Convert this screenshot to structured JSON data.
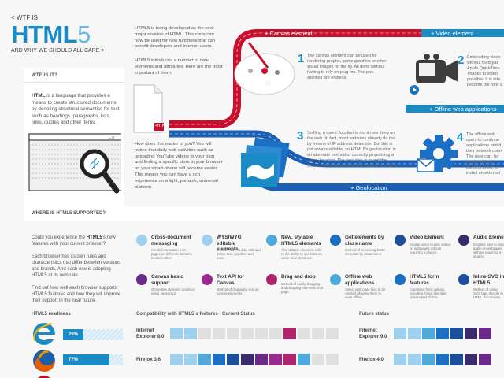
{
  "header": {
    "back_link": "< WTF IS",
    "title_html": "HTML",
    "title_five": "5",
    "subtitle": "AND WHY WE SHOULD ALL CARE >"
  },
  "intro": {
    "p1": "HTML5 is being developed as the next major revision of HTML. This code can now be used for new functions that can benefit developers and Internet users.",
    "p2": "HTML5 introduces a number of new elements and attributes. Here are the most important of them:",
    "p3": "How does this matter to you? You will notice that daily web activities such as uploading YouTube videos to your blog and finding a specific store in your browser on your smart-phone will become easier. This means you can have a rich experience on a light, portable, universal platform.",
    "html_tag": "<HTML>"
  },
  "wtf_panel": {
    "title": "WTF IS IT?",
    "text_bold": "HTML",
    "text": " is a language that provides a means to create structured documents by denoting structural semantics for text such as headings, paragraphs, lists, links, quotes and other items."
  },
  "roads": {
    "canvas_label": "+ Canvas element",
    "video_label": "+ Video element",
    "offline_label": "+ Offline web applications",
    "geo_label": "+ Geolocation"
  },
  "features": [
    {
      "num": "1",
      "text": "The canvas element can be used for rendering graphs, game graphics or other visual images on the fly. All done without having to rely on plug-ins. The pos-sibilities are endless."
    },
    {
      "num": "2",
      "text": "Embedding video without third-par Apple QuickTime Thanks to video possible. It is inte become the new s"
    },
    {
      "num": "3",
      "text": "Sniffing a users' location is not a new thing on the web. In fact, most websites already do this by means of IP address detection. But this is not always reliable, so HTML5's geolocation is an alternate method of correctly pinpointing a users' location. The new idea is to get the location information from WiFi towers and GPS."
    },
    {
      "num": "4",
      "text": "The offline web users to continue applications and d their network conn The user can, for locally without t connect to the In install an external"
    }
  ],
  "support": {
    "title": "WHERE IS HTML5 SUPPORTED?",
    "p1_pre": "Could you experience the ",
    "p1_bold": "HTML5",
    "p1_post": "'s new features with your current browser?",
    "p2": "Each browser has its own rules and characteristics that differ between versions and brands. And each one is adopting HTML5 at its own rate.",
    "p3": "Find out how well each browser supports HTML5 features and how they will improve their support in the near future."
  },
  "legend": [
    {
      "title": "Cross-document messaging",
      "desc": "Sends information from pages on different domains to each other.",
      "color": "#9fd1ef"
    },
    {
      "title": "WYSIWYG editable elements",
      "desc": "Enables user to add, edit and delete text, graphics and more.",
      "color": "#9fd1ef"
    },
    {
      "title": "New, stylable HTML5 elements",
      "desc": "The stylable elements refer to the ability to use CSS on some new elements.",
      "color": "#4ea9dd"
    },
    {
      "title": "Get elements by class name",
      "desc": "Method of accessing DOM elements by class name.",
      "color": "#1b6fc4"
    },
    {
      "title": "Video Element",
      "desc": "Enable users to play videos on webpages without requiring a plug-in.",
      "color": "#1b4f9c"
    },
    {
      "title": "Audio Element",
      "desc": "Enables user to play audio on webpages without requiring a plug-in.",
      "color": "#3a2c6c"
    },
    {
      "title": "Canvas basic support",
      "desc": "Generates dynamic graphics using Javascript.",
      "color": "#6a2a8a"
    },
    {
      "title": "Text API for Canvas",
      "desc": "Method of displaying text on canvas elements.",
      "color": "#9a2a8e"
    },
    {
      "title": "Drag and drop",
      "desc": "Method of easily dragging and dropping elements on a page.",
      "color": "#b0246e"
    },
    {
      "title": "Offline web applications",
      "desc": "Select web page files to be cached allowing them to work offline.",
      "color": "#4ea9dd"
    },
    {
      "title": "HTML5 form features",
      "desc": "Expanded form options, including things like date pickers and sliders.",
      "color": "#1b6fc4"
    },
    {
      "title": "Inline SVG in HTML5",
      "desc": "Method of using SVG tags directly in HTML documents.",
      "color": "#1b4f9c"
    }
  ],
  "readiness": {
    "title": "HTML5 readiness",
    "browsers": [
      {
        "pct": "26%",
        "value": 26,
        "logo": "ie-logo"
      },
      {
        "pct": "77%",
        "value": 77,
        "logo": "firefox-logo"
      }
    ]
  },
  "compat": {
    "title": "Compatibility with HTML5´s features - Current Status",
    "future_title": "Future status",
    "rows": [
      {
        "name": "Internet Explorer 8.0",
        "cells": [
          "#9fd1ef",
          "#9fd1ef",
          "#e0e0e0",
          "#e0e0e0",
          "#e0e0e0",
          "#e0e0e0",
          "#e0e0e0",
          "#e0e0e0",
          "#b0246e",
          "#e0e0e0",
          "#e0e0e0",
          "#e0e0e0"
        ],
        "future_name": "Internet Explorer 9.0",
        "future_cells": [
          "#9fd1ef",
          "#9fd1ef",
          "#4ea9dd",
          "#1b6fc4",
          "#1b4f9c",
          "#3a2c6c",
          "#6a2a8a",
          "#9a2a8e",
          "#b0246e",
          "#e0e0e0"
        ],
        "future_marks": [
          "?",
          "?"
        ]
      },
      {
        "name": "Firefox 3.6",
        "cells": [
          "#9fd1ef",
          "#9fd1ef",
          "#4ea9dd",
          "#1b6fc4",
          "#1b4f9c",
          "#3a2c6c",
          "#6a2a8a",
          "#9a2a8e",
          "#b0246e",
          "#4ea9dd",
          "#e0e0e0",
          "#e0e0e0"
        ],
        "future_name": "Firefox 4.0",
        "future_cells": [
          "#9fd1ef",
          "#9fd1ef",
          "#4ea9dd",
          "#1b6fc4",
          "#1b4f9c",
          "#3a2c6c",
          "#6a2a8a",
          "#9a2a8e",
          "#b0246e",
          "#4ea9dd",
          "#1b6fc4",
          "#1b4f9c"
        ],
        "future_marks": []
      }
    ]
  },
  "colors": {
    "accent": "#1b8bc6",
    "red_road": "#c8102e",
    "blue_road": "#1a5fb4"
  }
}
